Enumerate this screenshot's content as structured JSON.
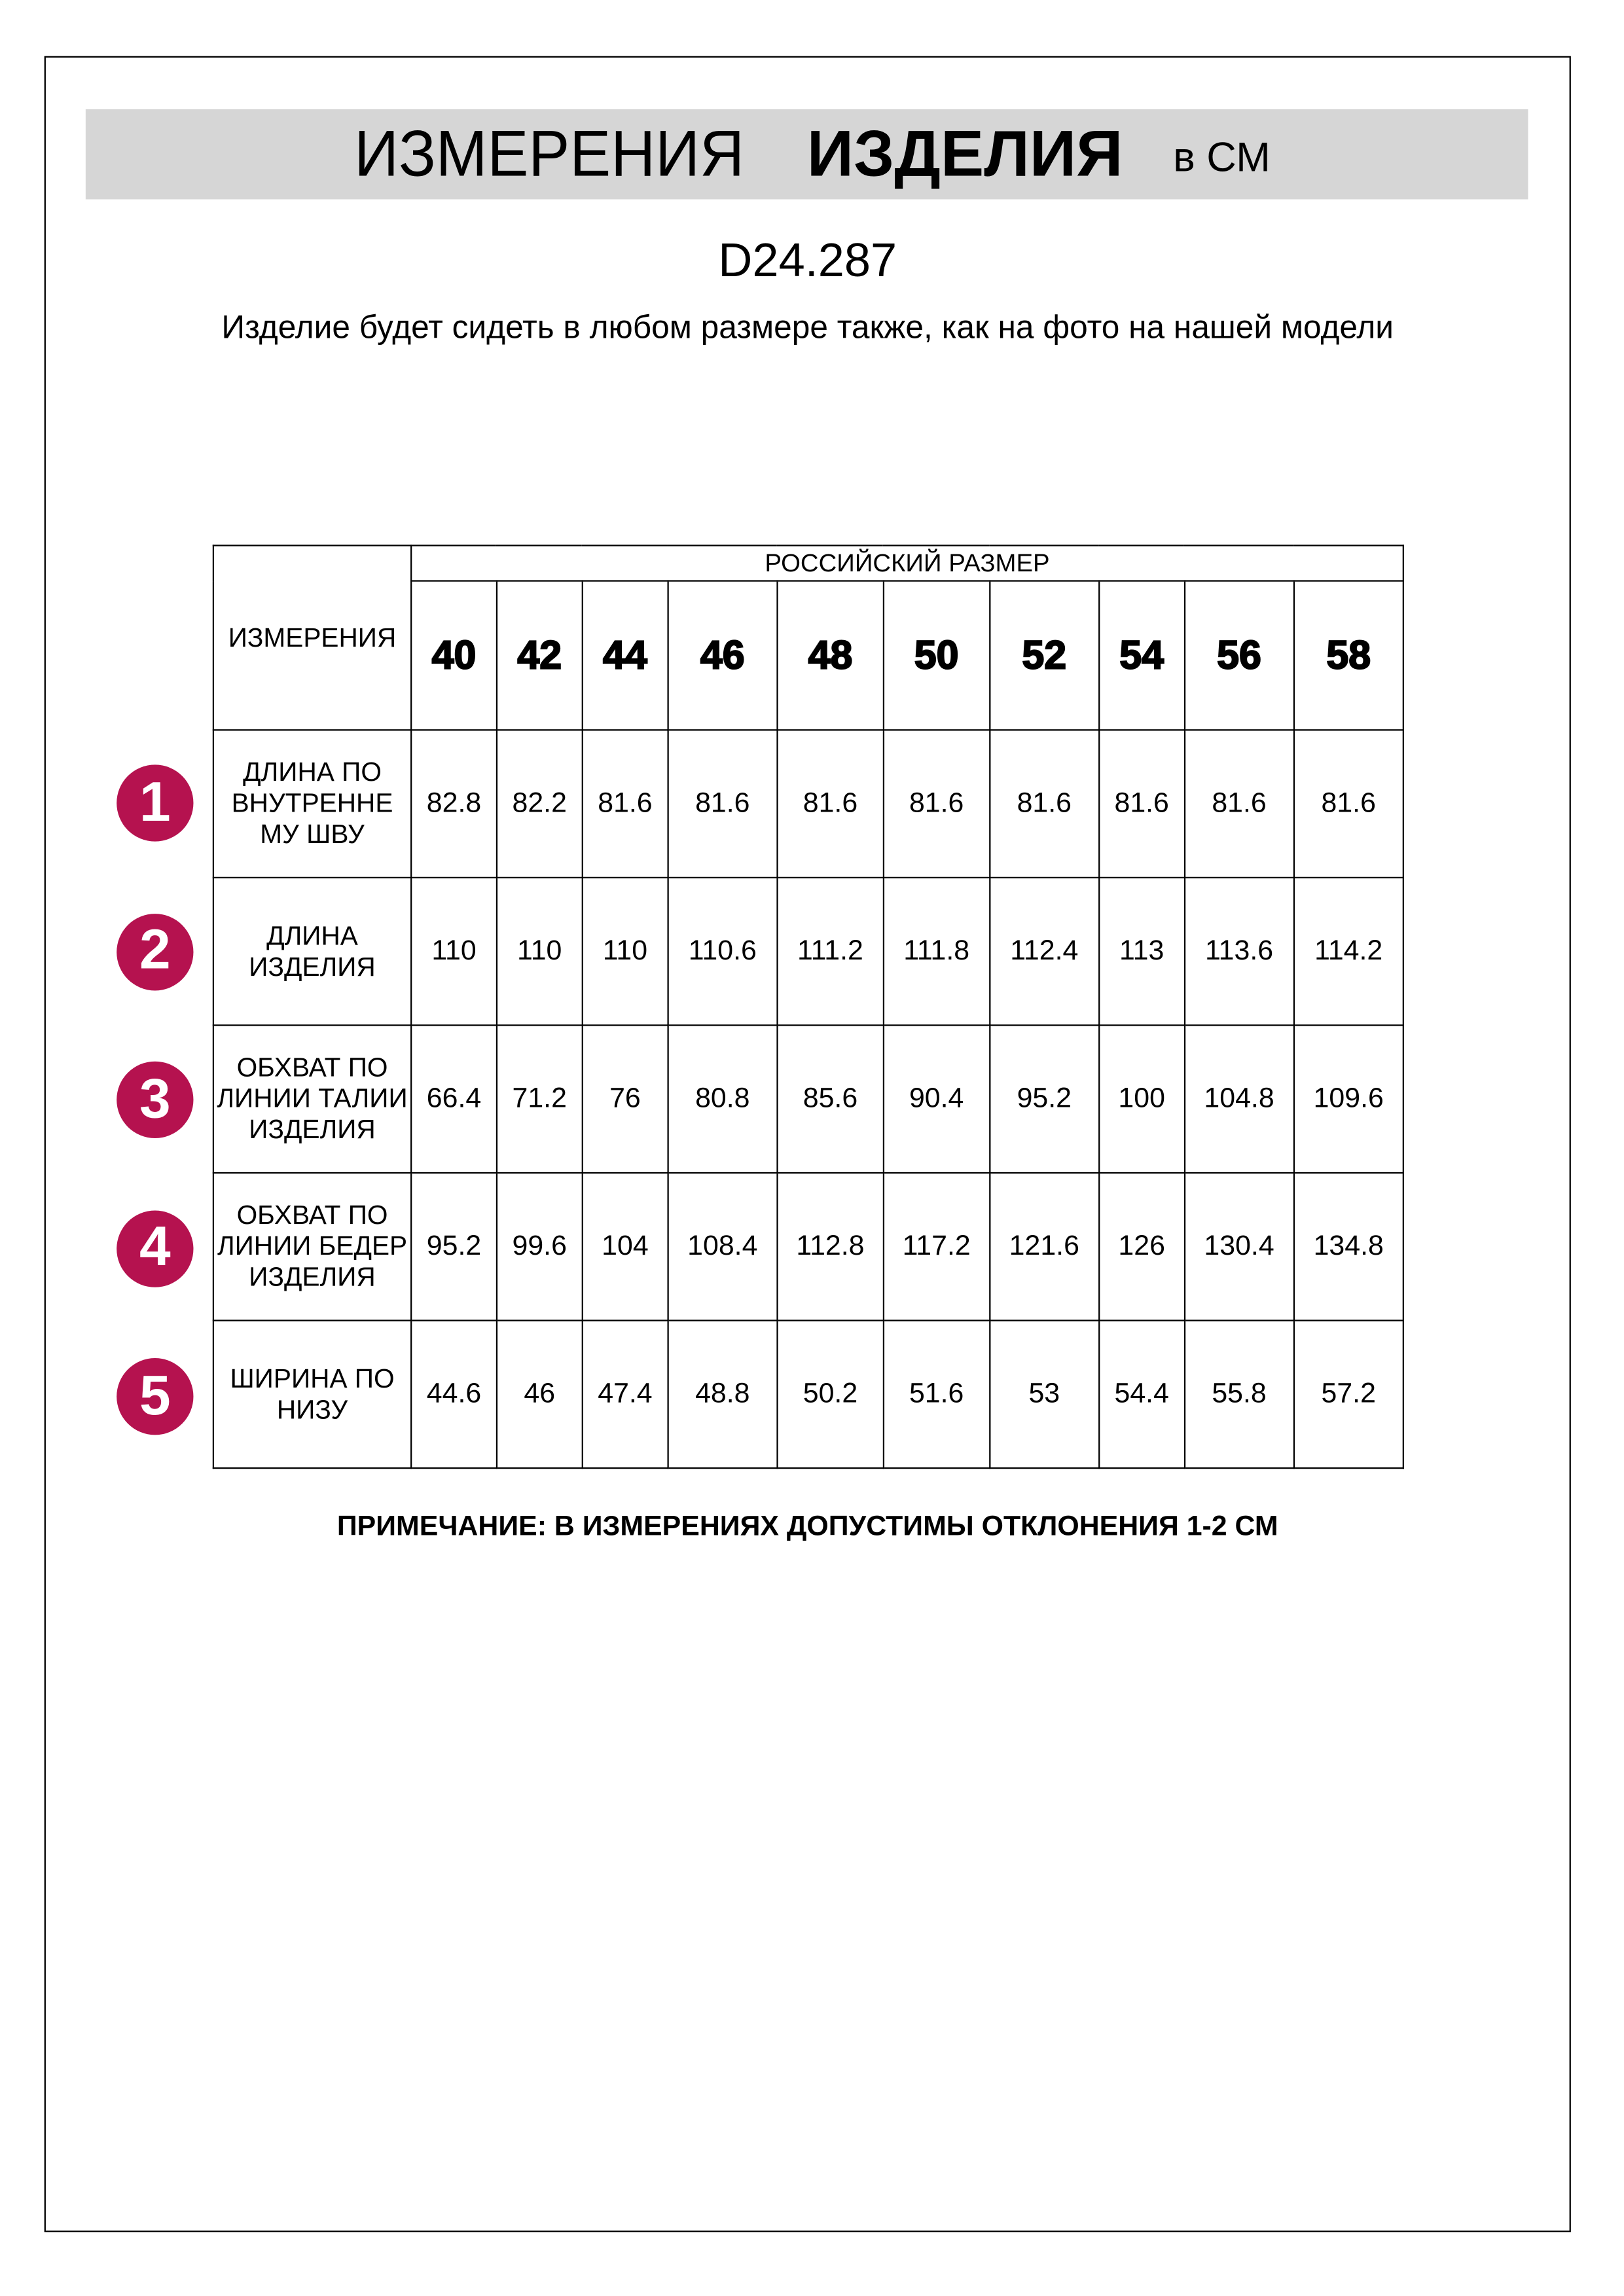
{
  "header": {
    "title_regular": "ИЗМЕРЕНИЯ",
    "title_bold": "ИЗДЕЛИЯ",
    "unit": "в СМ"
  },
  "product_code": "D24.287",
  "subtitle": "Изделие будет сидеть в любом размере также, как на фото на нашей модели",
  "accent_color": "#b5124f",
  "table": {
    "measurements_header": "ИЗМЕРЕНИЯ",
    "size_group_header": "РОССИЙСКИЙ РАЗМЕР",
    "sizes": [
      "40",
      "42",
      "44",
      "46",
      "48",
      "50",
      "52",
      "54",
      "56",
      "58"
    ],
    "rows": [
      {
        "number": "1",
        "label": "ДЛИНА ПО ВНУТРЕННЕ МУ ШВУ",
        "values": [
          "82.8",
          "82.2",
          "81.6",
          "81.6",
          "81.6",
          "81.6",
          "81.6",
          "81.6",
          "81.6",
          "81.6"
        ]
      },
      {
        "number": "2",
        "label": "ДЛИНА ИЗДЕЛИЯ",
        "values": [
          "110",
          "110",
          "110",
          "110.6",
          "111.2",
          "111.8",
          "112.4",
          "113",
          "113.6",
          "114.2"
        ]
      },
      {
        "number": "3",
        "label": "ОБХВАТ ПО ЛИНИИ ТАЛИИ ИЗДЕЛИЯ",
        "values": [
          "66.4",
          "71.2",
          "76",
          "80.8",
          "85.6",
          "90.4",
          "95.2",
          "100",
          "104.8",
          "109.6"
        ]
      },
      {
        "number": "4",
        "label": "ОБХВАТ ПО ЛИНИИ БЕДЕР ИЗДЕЛИЯ",
        "values": [
          "95.2",
          "99.6",
          "104",
          "108.4",
          "112.8",
          "117.2",
          "121.6",
          "126",
          "130.4",
          "134.8"
        ]
      },
      {
        "number": "5",
        "label": "ШИРИНА ПО НИЗУ",
        "values": [
          "44.6",
          "46",
          "47.4",
          "48.8",
          "50.2",
          "51.6",
          "53",
          "54.4",
          "55.8",
          "57.2"
        ]
      }
    ]
  },
  "note": "ПРИМЕЧАНИЕ: В ИЗМЕРЕНИЯХ ДОПУСТИМЫ ОТКЛОНЕНИЯ 1-2 СМ"
}
